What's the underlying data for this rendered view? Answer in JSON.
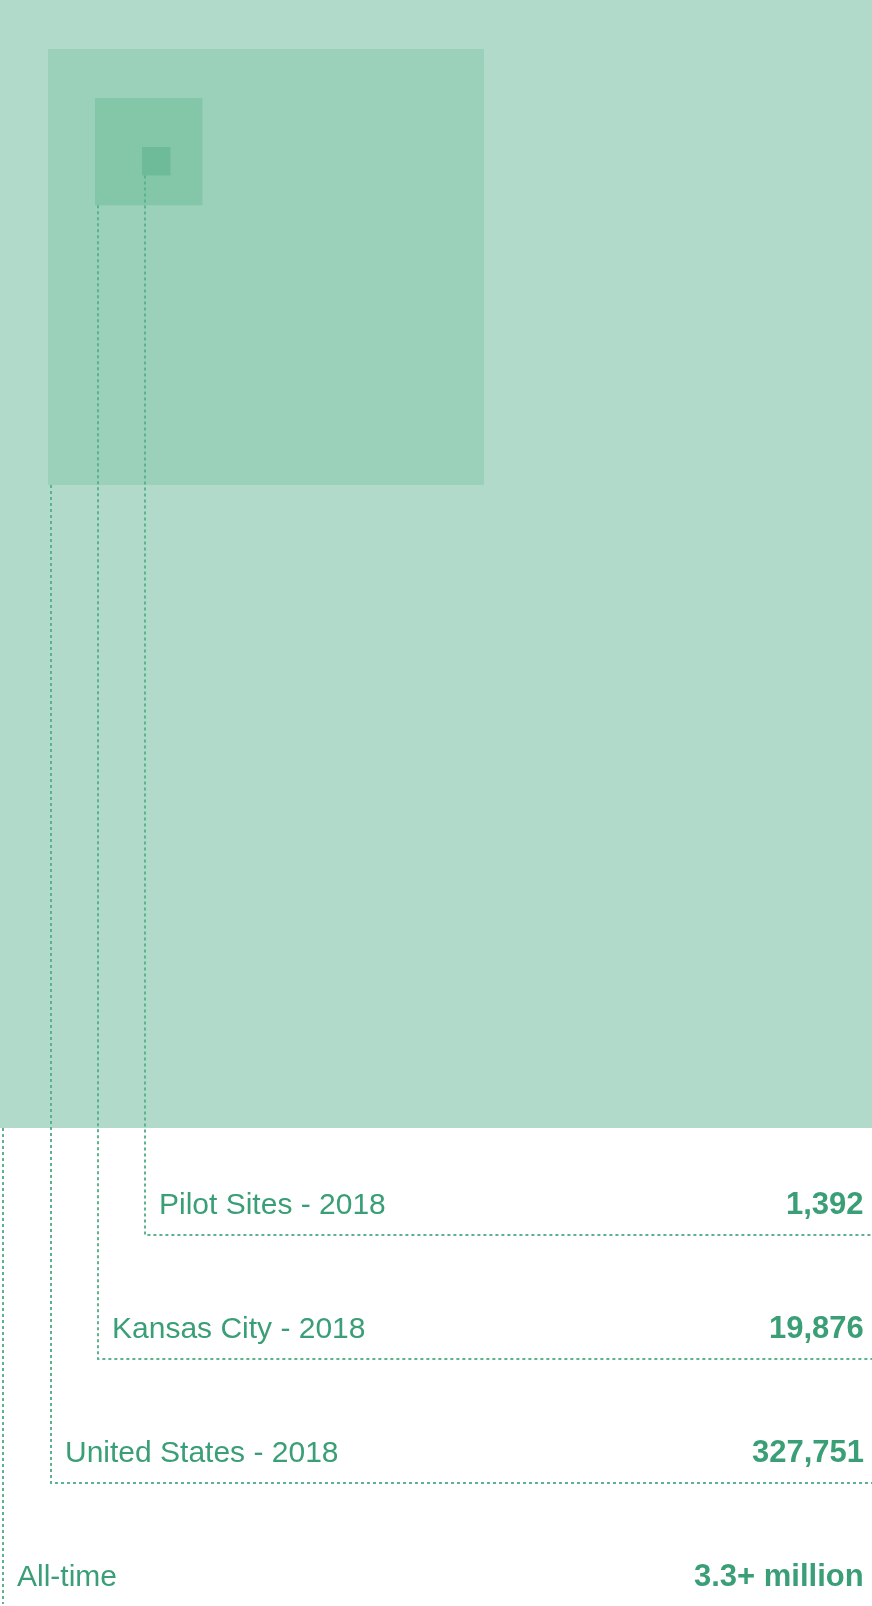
{
  "chart_data": {
    "type": "other",
    "categories": [
      "All-time",
      "United States - 2018",
      "Kansas City - 2018",
      "Pilot Sites - 2018"
    ],
    "values": [
      null,
      327751,
      19876,
      1392
    ],
    "value_labels": [
      "3.3+ million",
      "327,751",
      "19,876",
      "1,392"
    ],
    "colors": [
      "#b1dacb",
      "#9bd1ba",
      "#84c6a8",
      "#6dbb98"
    ]
  }
}
